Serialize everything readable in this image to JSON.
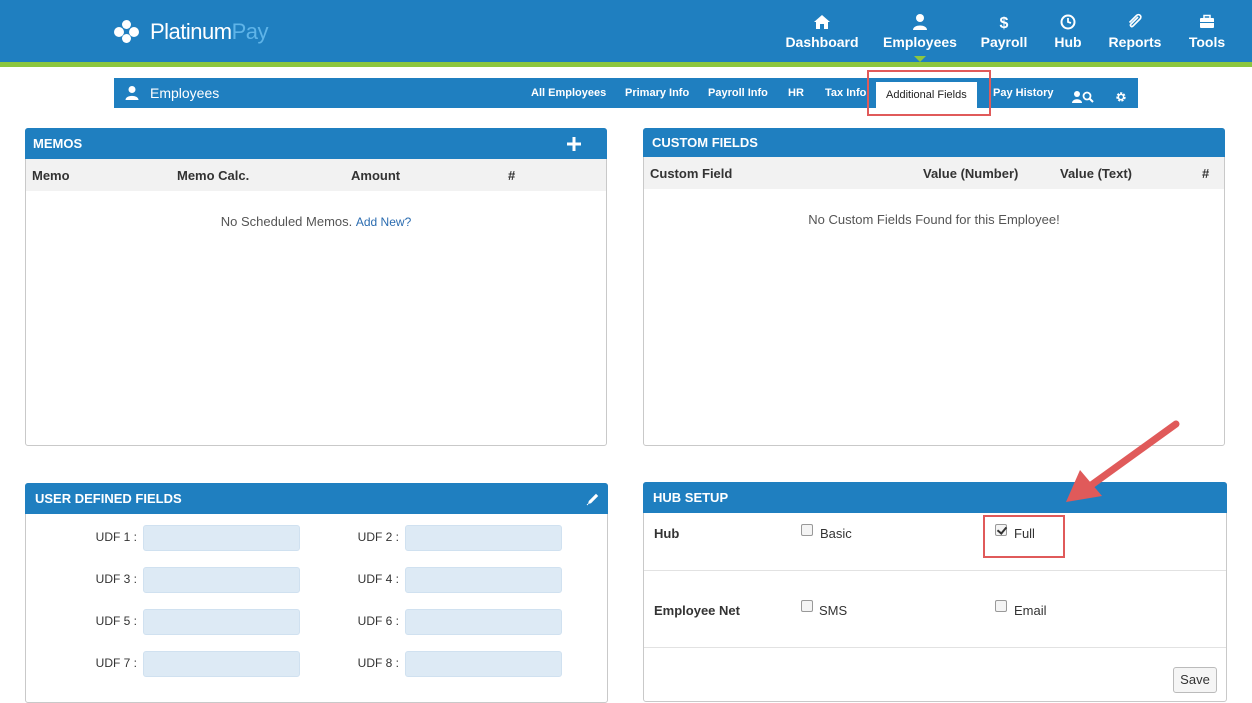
{
  "brand": {
    "name_main": "Platinum",
    "name_accent": "Pay"
  },
  "colors": {
    "primary": "#1f7fc0",
    "green": "#8cc63f",
    "highlight": "#e05a5a"
  },
  "nav": {
    "items": [
      {
        "label": "Dashboard",
        "icon": "home-icon"
      },
      {
        "label": "Employees",
        "icon": "user-icon",
        "active": true
      },
      {
        "label": "Payroll",
        "icon": "dollar-icon"
      },
      {
        "label": "Hub",
        "icon": "clock-icon"
      },
      {
        "label": "Reports",
        "icon": "paperclip-icon"
      },
      {
        "label": "Tools",
        "icon": "briefcase-icon"
      }
    ]
  },
  "subnav": {
    "title": "Employees",
    "tabs": [
      "All Employees",
      "Primary Info",
      "Payroll Info",
      "HR",
      "Tax Info",
      "Additional Fields",
      "Pay History"
    ],
    "active_tab": "Additional Fields",
    "icons": [
      "user-search-icon",
      "gear-icon"
    ]
  },
  "memos": {
    "title": "MEMOS",
    "columns": [
      "Memo",
      "Memo Calc.",
      "Amount",
      "#"
    ],
    "empty_text": "No Scheduled Memos.",
    "add_link": "Add New?"
  },
  "custom_fields": {
    "title": "CUSTOM FIELDS",
    "columns": [
      "Custom Field",
      "Value (Number)",
      "Value (Text)",
      "#"
    ],
    "empty_text": "No Custom Fields Found for this Employee!"
  },
  "udf": {
    "title": "USER DEFINED FIELDS",
    "fields": [
      "UDF 1 :",
      "UDF 2 :",
      "UDF 3 :",
      "UDF 4 :",
      "UDF 5 :",
      "UDF 6 :",
      "UDF 7 :",
      "UDF 8 :"
    ]
  },
  "hub_setup": {
    "title": "HUB SETUP",
    "hub_label": "Hub",
    "hub_basic": "Basic",
    "hub_full": "Full",
    "hub_full_checked": true,
    "hub_basic_checked": false,
    "employee_net_label": "Employee Net",
    "sms": "SMS",
    "email": "Email",
    "save": "Save"
  }
}
